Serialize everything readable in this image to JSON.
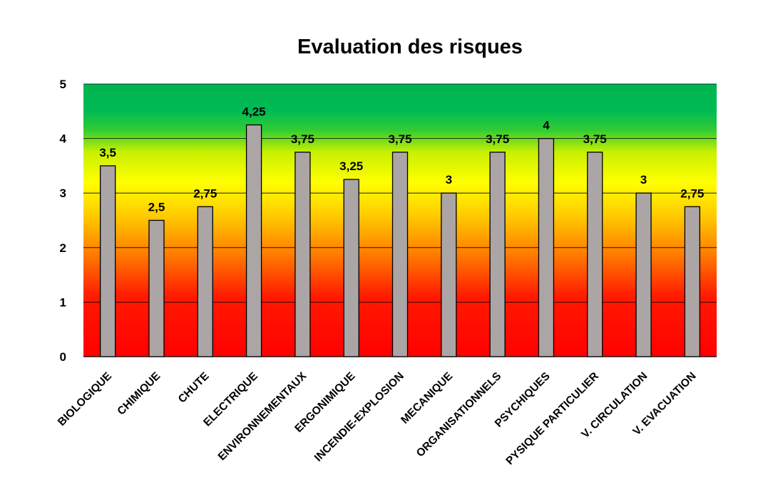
{
  "chart_data": {
    "type": "bar",
    "title": "Evaluation des risques",
    "xlabel": "",
    "ylabel": "",
    "ylim": [
      0,
      5
    ],
    "yticks": [
      "0",
      "1",
      "2",
      "3",
      "4",
      "5"
    ],
    "grid": true,
    "legend": "none",
    "background": "vertical gradient: red (low) → orange → yellow → green (high)",
    "bar_color": "#aca5a5",
    "categories": [
      "BIOLOGIQUE",
      "CHIMIQUE",
      "CHUTE",
      "ELECTRIQUE",
      "ENVIRONNEMENTAUX",
      "ERGONIMIQUE",
      "INCENDIE-EXPLOSION",
      "MECANIQUE",
      "ORGANISATIONNELS",
      "PSYCHIQUES",
      "PYSIQUE PARTICULIER",
      "V. CIRCULATION",
      "V. EVACUATION"
    ],
    "values": [
      3.5,
      2.5,
      2.75,
      4.25,
      3.75,
      3.25,
      3.75,
      3,
      3.75,
      4,
      3.75,
      3,
      2.75
    ],
    "data_labels": [
      "3,5",
      "2,5",
      "2,75",
      "4,25",
      "3,75",
      "3,25",
      "3,75",
      "3",
      "3,75",
      "4",
      "3,75",
      "3",
      "2,75"
    ]
  }
}
